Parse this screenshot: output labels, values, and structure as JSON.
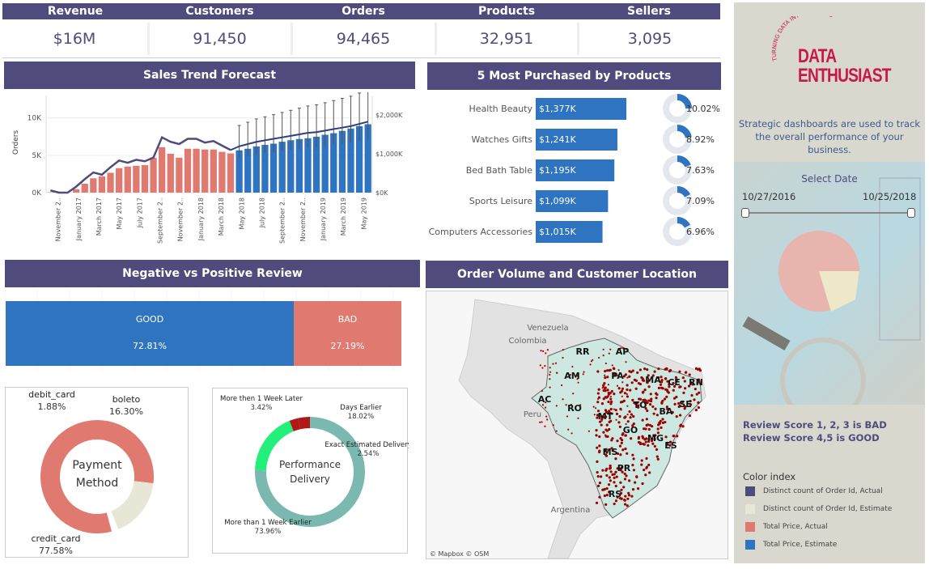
{
  "kpis": [
    {
      "label": "Revenue",
      "value": "$16M"
    },
    {
      "label": "Customers",
      "value": "91,450"
    },
    {
      "label": "Orders",
      "value": "94,465"
    },
    {
      "label": "Products",
      "value": "32,951"
    },
    {
      "label": "Sellers",
      "value": "3,095"
    }
  ],
  "sales_trend": {
    "title": "Sales Trend Forecast",
    "ylabel": "Orders"
  },
  "top_products": {
    "title": "5 Most Purchased by Products"
  },
  "reviews": {
    "title": "Negative vs Positive Review"
  },
  "payment": {
    "center_label_1": "Payment",
    "center_label_2": "Method"
  },
  "delivery": {
    "center_label_1": "Performance",
    "center_label_2": "Delivery"
  },
  "map": {
    "title": "Order Volume and Customer Location",
    "attribution": "© Mapbox © OSM",
    "countries": [
      "Venezuela",
      "Colombia",
      "Peru",
      "Argentina"
    ],
    "states": [
      "RR",
      "AP",
      "AM",
      "PA",
      "MA",
      "CE",
      "RN",
      "AC",
      "RO",
      "TO",
      "SE",
      "MT",
      "BA",
      "GO",
      "MG",
      "ES",
      "MS",
      "PR",
      "RS"
    ]
  },
  "sidebar": {
    "brand_line1": "DATA",
    "brand_line2": "ENTHUSIAST",
    "brand_arc": "TURNING DATA INTO INSIGHTS",
    "description": "Strategic dashboards are used to track the overall performance of your business.",
    "select_date_label": "Select Date",
    "date_start": "10/27/2016",
    "date_end": "10/25/2018",
    "note_bad": "Review Score 1, 2, 3  is BAD",
    "note_good": "Review Score 4,5 is GOOD",
    "color_index_title": "Color index",
    "legend": [
      {
        "label": "Distinct count of Order Id, Actual",
        "color": "#4f4c7d"
      },
      {
        "label": "Distinct count of Order Id, Estimate",
        "color": "#e8e6d6"
      },
      {
        "label": "Total Price, Actual",
        "color": "#e07a70"
      },
      {
        "label": "Total Price, Estimate",
        "color": "#2f74c0"
      }
    ]
  },
  "colors": {
    "header": "#4f4c7d",
    "actual_bar": "#e07a70",
    "estimate_bar": "#2f74c0",
    "teal": "#7ab8b0",
    "green": "#22f07a",
    "darkred": "#b01818",
    "beige": "#e8e6d6",
    "sidebar_bg": "#d8d8ce"
  },
  "chart_data": [
    {
      "type": "bar",
      "title": "Sales Trend Forecast",
      "ylabel": "Orders",
      "y_left_ticks": [
        "0K",
        "5K",
        "10K"
      ],
      "y_right_ticks": [
        "$0K",
        "$1,000K",
        "$2,000K"
      ],
      "x_tick_labels": [
        "November 2..",
        "January 2017",
        "March 2017",
        "May 2017",
        "July 2017",
        "September 2..",
        "November 2..",
        "January 2018",
        "March 2018",
        "May 2018",
        "July 2018",
        "September 2..",
        "November 2..",
        "January 2019",
        "March 2019",
        "May 2019"
      ],
      "ylim_left": [
        0,
        13000
      ],
      "ylim_right": [
        0,
        2500
      ],
      "series": [
        {
          "name": "Total Price, Actual",
          "values": [
            10,
            0,
            0,
            90,
            230,
            370,
            420,
            510,
            630,
            670,
            690,
            710,
            900,
            1170,
            1000,
            900,
            1130,
            1130,
            1110,
            1110,
            1050,
            1010
          ]
        },
        {
          "name": "Total Price, Estimate",
          "values": [
            1090,
            1130,
            1190,
            1230,
            1260,
            1310,
            1350,
            1380,
            1400,
            1440,
            1490,
            1530,
            1590,
            1650,
            1710,
            1760
          ]
        },
        {
          "name": "Distinct count of Order Id, Actual",
          "values": [
            300,
            0,
            0,
            800,
            1800,
            2700,
            2400,
            3400,
            4300,
            4000,
            4400,
            4200,
            4700,
            7400,
            6800,
            6500,
            7200,
            7200,
            6700,
            6900,
            6300,
            5700
          ]
        },
        {
          "name": "Distinct count of Order Id, Estimate",
          "values": [
            6200,
            6500,
            6800,
            7000,
            7200,
            7400,
            7600,
            7800,
            8000,
            8100,
            8300,
            8500,
            8700,
            8900,
            9200,
            9500
          ]
        }
      ]
    },
    {
      "type": "bar",
      "title": "5 Most Purchased by Products",
      "categories": [
        "Health Beauty",
        "Watches Gifts",
        "Bed Bath Table",
        "Sports Leisure",
        "Computers Accessories"
      ],
      "values": [
        1377,
        1241,
        1195,
        1099,
        1015
      ],
      "value_labels": [
        "$1,377K",
        "$1,241K",
        "$1,195K",
        "$1,099K",
        "$1,015K"
      ],
      "shares": [
        10.02,
        8.92,
        7.63,
        7.09,
        6.96
      ],
      "share_labels": [
        "10.02%",
        "8.92%",
        "7.63%",
        "7.09%",
        "6.96%"
      ]
    },
    {
      "type": "bar",
      "title": "Negative vs Positive Review",
      "categories": [
        "GOOD",
        "BAD"
      ],
      "values": [
        72.81,
        27.19
      ],
      "value_labels": [
        "72.81%",
        "27.19%"
      ]
    },
    {
      "type": "pie",
      "categories": [
        "credit_card",
        "boleto",
        "debit_card"
      ],
      "values": [
        77.58,
        16.3,
        1.88
      ],
      "value_labels": [
        "77.58%",
        "16.30%",
        "1.88%"
      ]
    },
    {
      "type": "pie",
      "categories": [
        "More than 1 Week Earlier",
        "Days Earlier",
        "Exact Estimated Delivery",
        "More then 1 Week Later"
      ],
      "values": [
        73.96,
        18.02,
        2.54,
        3.42
      ],
      "value_labels": [
        "73.96%",
        "18.02%",
        "2.54%",
        "3.42%"
      ]
    }
  ]
}
